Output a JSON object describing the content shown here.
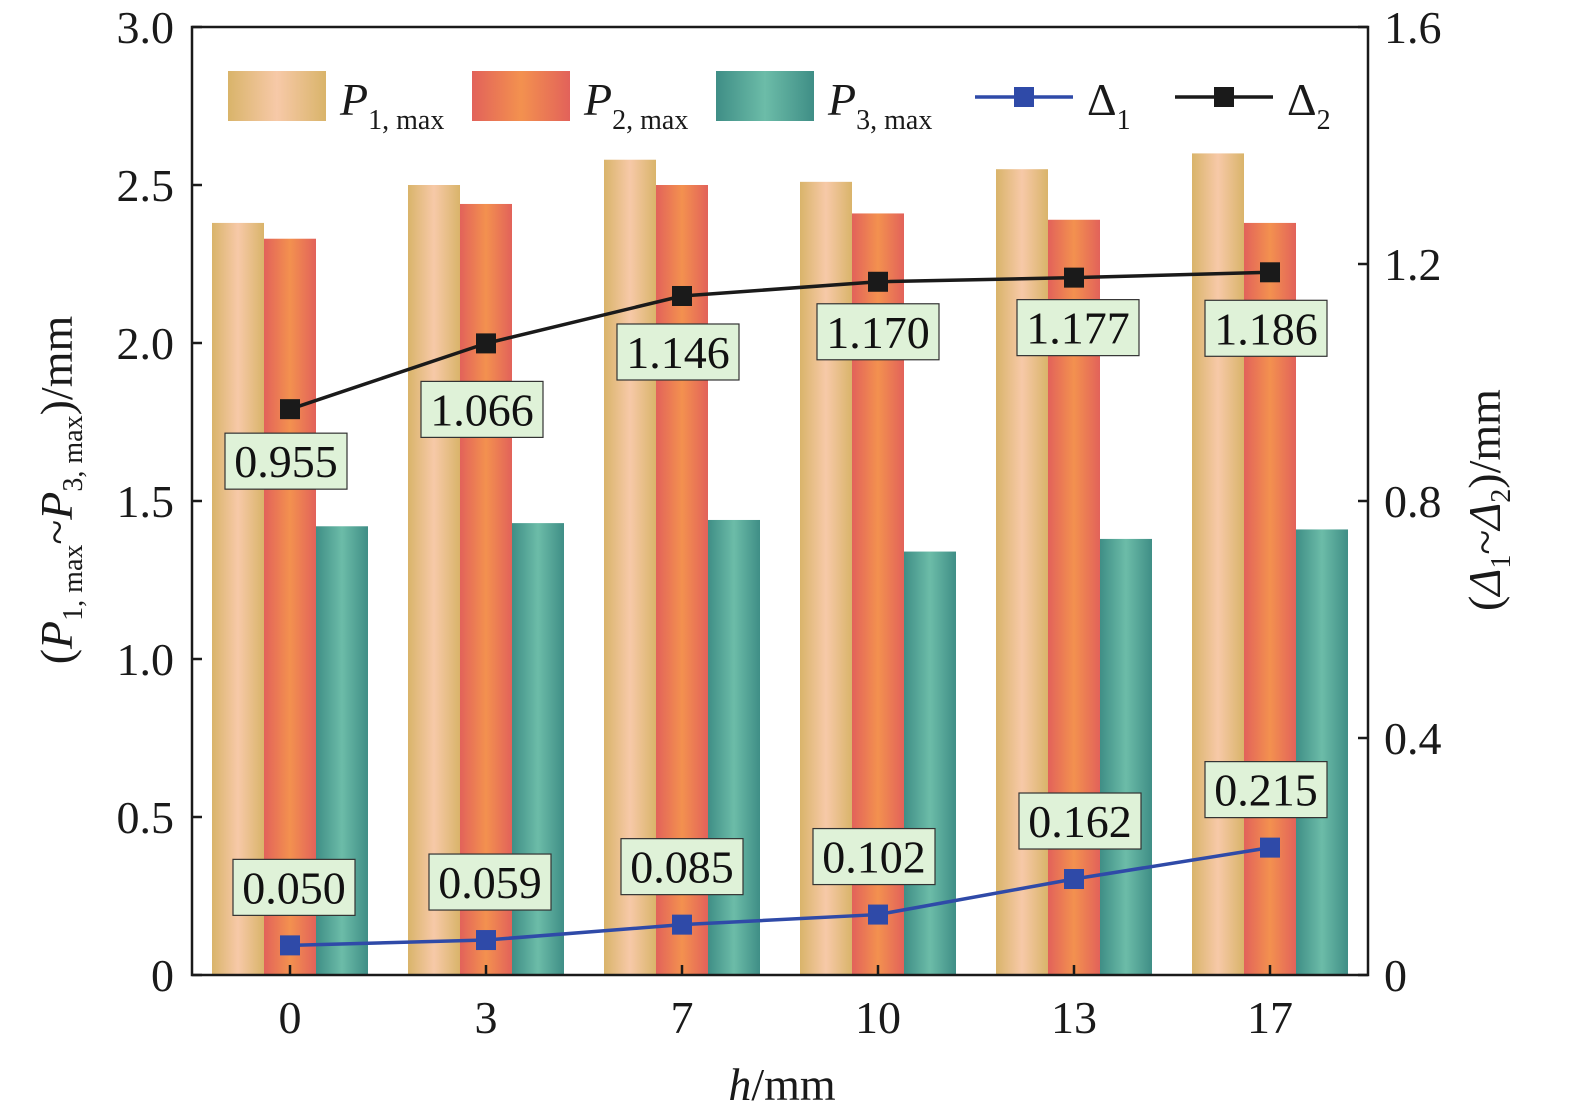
{
  "chart_data": {
    "type": "bar",
    "categories": [
      "0",
      "3",
      "7",
      "10",
      "13",
      "17"
    ],
    "xlabel": {
      "var": "h",
      "unit": "/mm"
    },
    "ylabel_left": {
      "open": "(",
      "p1": "P",
      "p1_sub": "1, max",
      "tilde": "~",
      "p3": "P",
      "p3_sub": "3, max",
      "close": ")/mm"
    },
    "ylabel_right": {
      "open": "(",
      "d1": "Δ",
      "d1_sub": "1",
      "tilde": "~",
      "d2": "Δ",
      "d2_sub": "2",
      "close": ")/mm"
    },
    "ylim_left": [
      0,
      3.0
    ],
    "yticks_left": [
      "0",
      "0.5",
      "1.0",
      "1.5",
      "2.0",
      "2.5",
      "3.0"
    ],
    "ylim_right": [
      0,
      1.6
    ],
    "yticks_right": [
      "0",
      "0.4",
      "0.8",
      "1.2",
      "1.6"
    ],
    "bar_series": [
      {
        "name": "P",
        "sub": "1, max",
        "values": [
          2.38,
          2.5,
          2.58,
          2.51,
          2.55,
          2.6
        ],
        "colors": [
          "#d9b46a",
          "#f7c9a8",
          "#d9b46a"
        ]
      },
      {
        "name": "P",
        "sub": "2, max",
        "values": [
          2.33,
          2.44,
          2.5,
          2.41,
          2.39,
          2.38
        ],
        "colors": [
          "#e2625a",
          "#f3914f",
          "#e2625a"
        ]
      },
      {
        "name": "P",
        "sub": "3, max",
        "values": [
          1.42,
          1.43,
          1.44,
          1.34,
          1.38,
          1.41
        ],
        "colors": [
          "#3f8e86",
          "#6cbca8",
          "#3f8e86"
        ]
      }
    ],
    "line_series": [
      {
        "name": "Δ",
        "sub": "1",
        "axis": "right",
        "color": "#2f4aa8",
        "values": [
          0.05,
          0.059,
          0.085,
          0.102,
          0.162,
          0.215
        ],
        "labels": [
          "0.050",
          "0.059",
          "0.085",
          "0.102",
          "0.162",
          "0.215"
        ]
      },
      {
        "name": "Δ",
        "sub": "2",
        "axis": "right",
        "color": "#1a1a1a",
        "values": [
          0.955,
          1.066,
          1.146,
          1.17,
          1.177,
          1.186
        ],
        "labels": [
          "0.955",
          "1.066",
          "1.146",
          "1.170",
          "1.177",
          "1.186"
        ]
      }
    ],
    "legend_position": "top",
    "grid": false
  }
}
